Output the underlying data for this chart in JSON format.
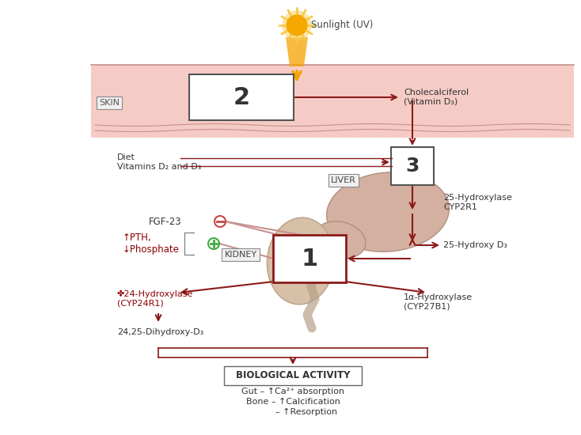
{
  "bg_color": "#ffffff",
  "skin_bg": "#f5ccc5",
  "skin_label": "SKIN",
  "sun_text": "Sunlight (UV)",
  "box2_label": "2",
  "box3_label": "3",
  "box1_label": "1",
  "liver_label": "LIVER",
  "kidney_label": "KIDNEY",
  "cholecalciferol_text": "Cholecalciferol\n(Vitamin D₃)",
  "diet_text": "Diet\nVitamins D₂ and D₃",
  "hydroxylase_25_text": "25-Hydroxylase\nCYP2R1",
  "hydroxy_d3_text": "25-Hydroxy D₃",
  "fgf23_text": "FGF-23",
  "pth_text": "↑PTH,\n↓Phosphate",
  "hydroxylase_24_text": "✤24-Hydroxylase\n(CYP24R1)",
  "dihydroxy_text": "24,25-Dihydroxy-D₃",
  "hydroxylase_1a_text": "1α-Hydroxylase\n(CYP27B1)",
  "bio_activity_title": "BIOLOGICAL ACTIVITY",
  "bio_line1": "Gut – ↑Ca²⁺ absorption",
  "bio_line2": "Bone – ↑Calcification",
  "bio_line3": "          – ↑Resorption",
  "arrow_color": "#8b1a1a",
  "text_color": "#333333",
  "red_text_color": "#8b0000",
  "box_edge_color": "#555555",
  "green_circle_color": "#90c090",
  "liver_color": "#d4b0a0",
  "liver_edge": "#b09080",
  "kidney_color": "#d8c0a8",
  "kidney_edge": "#b8a088",
  "skin_line_color": "#c89090",
  "sun_body_color": "#f5a800",
  "sun_ray_color": "#f5c840",
  "beam_color": "#f5a200"
}
